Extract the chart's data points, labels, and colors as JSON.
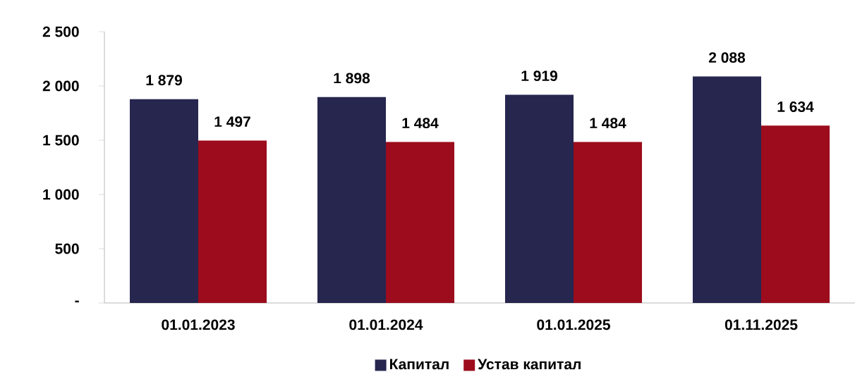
{
  "chart_data": {
    "type": "bar",
    "categories": [
      "01.01.2023",
      "01.01.2024",
      "01.01.2025",
      "01.11.2025"
    ],
    "series": [
      {
        "name": "Капитал",
        "color": "#26264f",
        "values": [
          1879,
          1898,
          1919,
          2088
        ],
        "value_labels": [
          "1 879",
          "1 898",
          "1 919",
          "2 088"
        ]
      },
      {
        "name": "Устав капитал",
        "color": "#9c0c1c",
        "values": [
          1497,
          1484,
          1484,
          1634
        ],
        "value_labels": [
          "1 497",
          "1 484",
          "1 484",
          "1 634"
        ]
      }
    ],
    "ylim": [
      0,
      2500
    ],
    "yticks": [
      {
        "value": 0,
        "label": "-"
      },
      500,
      {
        "value": 1000,
        "label": "1 000"
      },
      {
        "value": 1500,
        "label": "1 500"
      },
      {
        "value": 2000,
        "label": "2 000"
      },
      {
        "value": 2500,
        "label": "2 500"
      }
    ],
    "grid": false,
    "legend": "bottom"
  }
}
